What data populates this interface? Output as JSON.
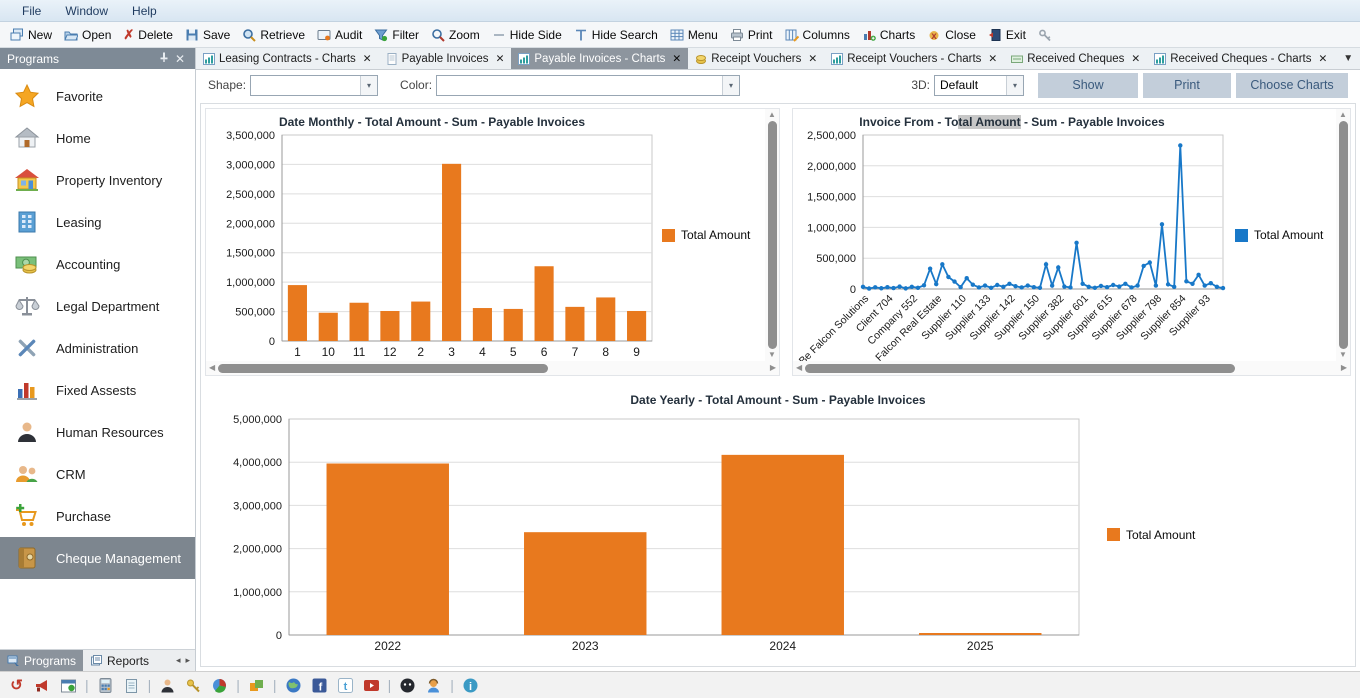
{
  "ui": {
    "combo_arrow": "▾",
    "overflow_arrow": "▼",
    "close_glyph": "✕",
    "pin_glyph": "🖈",
    "scroll_up": "▲",
    "scroll_down": "▼",
    "scroll_left": "◀",
    "scroll_right": "▶",
    "sb_arrow_left": "◂",
    "sb_arrow_right": "▸"
  },
  "menu": {
    "items": [
      {
        "label": "File"
      },
      {
        "label": "Window"
      },
      {
        "label": "Help"
      }
    ]
  },
  "toolbar": {
    "buttons": [
      {
        "label": "New",
        "icon": "new-window-icon"
      },
      {
        "label": "Open",
        "icon": "open-folder-icon"
      },
      {
        "label": "Delete",
        "icon": "delete-x-icon"
      },
      {
        "label": "Save",
        "icon": "save-floppy-icon"
      },
      {
        "label": "Retrieve",
        "icon": "retrieve-magnifier-icon"
      },
      {
        "label": "Audit",
        "icon": "audit-screen-icon"
      },
      {
        "label": "Filter",
        "icon": "filter-funnel-icon"
      },
      {
        "label": "Zoom",
        "icon": "zoom-magnifier-icon"
      },
      {
        "label": "Hide Side",
        "icon": "hide-side-icon"
      },
      {
        "label": "Hide Search",
        "icon": "hide-search-icon"
      },
      {
        "label": "Menu",
        "icon": "menu-grid-icon"
      },
      {
        "label": "Print",
        "icon": "print-icon"
      },
      {
        "label": "Columns",
        "icon": "columns-table-icon"
      },
      {
        "label": "Charts",
        "icon": "charts-bar-icon"
      },
      {
        "label": "Close",
        "icon": "close-red-icon"
      },
      {
        "label": "Exit",
        "icon": "exit-door-icon"
      }
    ]
  },
  "tabs": {
    "items": [
      {
        "label": "Leasing Contracts - Charts",
        "icon": "chart-tab-icon"
      },
      {
        "label": "Payable Invoices",
        "icon": "document-tab-icon"
      },
      {
        "label": "Payable Invoices - Charts",
        "icon": "chart-tab-icon"
      },
      {
        "label": "Receipt Vouchers",
        "icon": "money-tab-icon"
      },
      {
        "label": "Receipt Vouchers - Charts",
        "icon": "chart-tab-icon"
      },
      {
        "label": "Received Cheques",
        "icon": "cheque-tab-icon"
      },
      {
        "label": "Received Cheques - Charts",
        "icon": "chart-tab-icon"
      }
    ],
    "active_index": 2
  },
  "controls": {
    "shape_label": "Shape:",
    "shape_value": "",
    "color_label": "Color:",
    "color_value": "",
    "threeD_label": "3D:",
    "threeD_value": "Default",
    "show_button": "Show",
    "print_button": "Print",
    "choose_charts_button": "Choose Charts"
  },
  "sidebar": {
    "title": "Programs",
    "items": [
      {
        "label": "Favorite",
        "icon": "star-icon"
      },
      {
        "label": "Home",
        "icon": "home-icon"
      },
      {
        "label": "Property Inventory",
        "icon": "property-house-icon"
      },
      {
        "label": "Leasing",
        "icon": "building-icon"
      },
      {
        "label": "Accounting",
        "icon": "money-icon"
      },
      {
        "label": "Legal Department",
        "icon": "scales-icon"
      },
      {
        "label": "Administration",
        "icon": "tools-icon"
      },
      {
        "label": "Fixed Assests",
        "icon": "bar-graph-icon"
      },
      {
        "label": "Human Resources",
        "icon": "person-icon"
      },
      {
        "label": "CRM",
        "icon": "people-icon"
      },
      {
        "label": "Purchase",
        "icon": "cart-icon"
      },
      {
        "label": "Cheque Management",
        "icon": "safe-icon"
      }
    ],
    "selected_index": 11,
    "bottom_tabs": [
      {
        "label": "Programs"
      },
      {
        "label": "Reports"
      }
    ]
  },
  "chart_data": [
    {
      "type": "bar",
      "title": "Date Monthly - Total Amount - Sum - Payable Invoices",
      "categories": [
        "1",
        "10",
        "11",
        "12",
        "2",
        "3",
        "4",
        "5",
        "6",
        "7",
        "8",
        "9"
      ],
      "values": [
        950000,
        480000,
        650000,
        510000,
        670000,
        3010000,
        560000,
        545000,
        1270000,
        580000,
        740000,
        510000
      ],
      "ylim": [
        0,
        3500000
      ],
      "ytick": 500000,
      "series_name": "Total Amount",
      "color": "#E8791E",
      "xlabel": "",
      "ylabel": "",
      "grid": true,
      "legend_position": "right"
    },
    {
      "type": "line",
      "title": "Invoice From - Total Amount - Sum - Payable Invoices",
      "title_parts": [
        "Invoice From - To",
        "tal Amount",
        " - Sum - Payable Invoices"
      ],
      "tick_labels": [
        "Be Falcon Solutions",
        "Client 704",
        "Company 552",
        "Falcon Real Estate",
        "Supplier 110",
        "Supplier 133",
        "Supplier 142",
        "Supplier 150",
        "Supplier 382",
        "Supplier 601",
        "Supplier 615",
        "Supplier 678",
        "Supplier 798",
        "Supplier 854",
        "Supplier 93"
      ],
      "values": [
        35000,
        8000,
        28000,
        12000,
        30000,
        15000,
        40000,
        10000,
        35000,
        20000,
        60000,
        330000,
        80000,
        400000,
        195000,
        120000,
        30000,
        175000,
        70000,
        25000,
        55000,
        20000,
        65000,
        35000,
        85000,
        45000,
        25000,
        55000,
        30000,
        20000,
        400000,
        55000,
        350000,
        40000,
        25000,
        750000,
        85000,
        35000,
        20000,
        50000,
        30000,
        65000,
        40000,
        85000,
        25000,
        55000,
        375000,
        430000,
        55000,
        1050000,
        75000,
        35000,
        2330000,
        125000,
        85000,
        230000,
        55000,
        95000,
        35000,
        15000
      ],
      "ylim": [
        0,
        2500000
      ],
      "ytick": 500000,
      "series_name": "Total Amount",
      "color": "#1878C8",
      "xlabel": "",
      "ylabel": "",
      "grid": true,
      "legend_position": "right"
    },
    {
      "type": "bar",
      "title": "Date Yearly - Total Amount - Sum - Payable Invoices",
      "categories": [
        "2022",
        "2023",
        "2024",
        "2025"
      ],
      "values": [
        3970000,
        2380000,
        4170000,
        25000
      ],
      "ylim": [
        0,
        5000000
      ],
      "ytick": 1000000,
      "series_name": "Total Amount",
      "color": "#E8791E",
      "xlabel": "",
      "ylabel": "",
      "grid": true,
      "legend_position": "right"
    }
  ],
  "statusbar": {
    "icons": [
      "sync-icon",
      "megaphone-icon",
      "calendar-icon",
      "calculator-icon",
      "notepad-icon",
      "person-icon",
      "key-icon",
      "pie-chart-icon",
      "layers-icon",
      "globe-icon",
      "facebook-icon",
      "twitter-icon",
      "youtube-icon",
      "messenger-icon",
      "support-icon",
      "info-icon"
    ]
  }
}
